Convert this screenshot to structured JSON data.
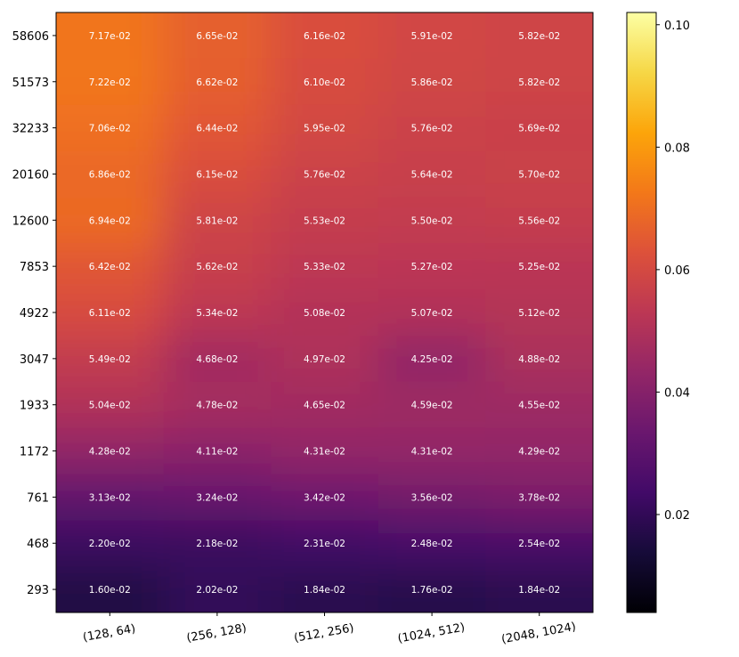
{
  "chart_data": {
    "type": "heatmap",
    "title": "",
    "xlabel": "",
    "ylabel": "",
    "x_categories": [
      "(128, 64)",
      "(256, 128)",
      "(512, 256)",
      "(1024, 512)",
      "(2048, 1024)"
    ],
    "y_categories": [
      "58606",
      "51573",
      "32233",
      "20160",
      "12600",
      "7853",
      "4922",
      "3047",
      "1933",
      "1172",
      "761",
      "468",
      "293"
    ],
    "values": [
      [
        0.0717,
        0.0665,
        0.0616,
        0.0591,
        0.0582
      ],
      [
        0.0722,
        0.0662,
        0.061,
        0.0586,
        0.0582
      ],
      [
        0.0706,
        0.0644,
        0.0595,
        0.0576,
        0.0569
      ],
      [
        0.0686,
        0.0615,
        0.0576,
        0.0564,
        0.057
      ],
      [
        0.0694,
        0.0581,
        0.0553,
        0.055,
        0.0556
      ],
      [
        0.0642,
        0.0562,
        0.0533,
        0.0527,
        0.0525
      ],
      [
        0.0611,
        0.0534,
        0.0508,
        0.0507,
        0.0512
      ],
      [
        0.0549,
        0.0468,
        0.0497,
        0.0425,
        0.0488
      ],
      [
        0.0504,
        0.0478,
        0.0465,
        0.0459,
        0.0455
      ],
      [
        0.0428,
        0.0411,
        0.0431,
        0.0431,
        0.0429
      ],
      [
        0.0313,
        0.0324,
        0.0342,
        0.0356,
        0.0378
      ],
      [
        0.022,
        0.0218,
        0.0231,
        0.0248,
        0.0254
      ],
      [
        0.016,
        0.0202,
        0.0184,
        0.0176,
        0.0184
      ]
    ],
    "cell_labels": [
      [
        "7.17e-02",
        "6.65e-02",
        "6.16e-02",
        "5.91e-02",
        "5.82e-02"
      ],
      [
        "7.22e-02",
        "6.62e-02",
        "6.10e-02",
        "5.86e-02",
        "5.82e-02"
      ],
      [
        "7.06e-02",
        "6.44e-02",
        "5.95e-02",
        "5.76e-02",
        "5.69e-02"
      ],
      [
        "6.86e-02",
        "6.15e-02",
        "5.76e-02",
        "5.64e-02",
        "5.70e-02"
      ],
      [
        "6.94e-02",
        "5.81e-02",
        "5.53e-02",
        "5.50e-02",
        "5.56e-02"
      ],
      [
        "6.42e-02",
        "5.62e-02",
        "5.33e-02",
        "5.27e-02",
        "5.25e-02"
      ],
      [
        "6.11e-02",
        "5.34e-02",
        "5.08e-02",
        "5.07e-02",
        "5.12e-02"
      ],
      [
        "5.49e-02",
        "4.68e-02",
        "4.97e-02",
        "4.25e-02",
        "4.88e-02"
      ],
      [
        "5.04e-02",
        "4.78e-02",
        "4.65e-02",
        "4.59e-02",
        "4.55e-02"
      ],
      [
        "4.28e-02",
        "4.11e-02",
        "4.31e-02",
        "4.31e-02",
        "4.29e-02"
      ],
      [
        "3.13e-02",
        "3.24e-02",
        "3.42e-02",
        "3.56e-02",
        "3.78e-02"
      ],
      [
        "2.20e-02",
        "2.18e-02",
        "2.31e-02",
        "2.48e-02",
        "2.54e-02"
      ],
      [
        "1.60e-02",
        "2.02e-02",
        "1.84e-02",
        "1.76e-02",
        "1.84e-02"
      ]
    ],
    "colormap": "inferno",
    "colorbar": {
      "range": [
        0.004,
        0.102
      ],
      "ticks": [
        0.02,
        0.04,
        0.06,
        0.08,
        0.1
      ],
      "tick_labels": [
        "0.02",
        "0.04",
        "0.06",
        "0.08",
        "0.10"
      ]
    },
    "grid": false,
    "legend": "none",
    "x_tick_rotation_deg": 10
  }
}
